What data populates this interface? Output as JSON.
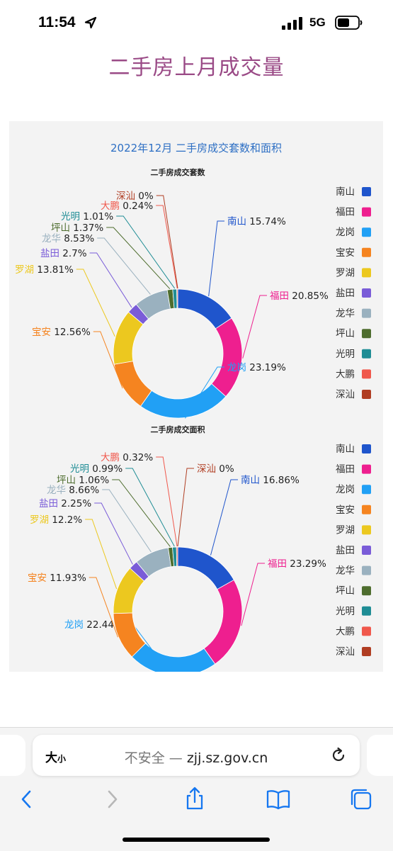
{
  "status_bar": {
    "time": "11:54",
    "network": "5G"
  },
  "page_title": "二手房上月成交量",
  "address_bar": {
    "text_size_big": "大",
    "text_size_small": "小",
    "insecure_label": "不安全 — ",
    "domain": "zjj.sz.gov.cn"
  },
  "icons": {
    "location": "location-arrow-icon",
    "signal": "signal-bars-icon",
    "battery": "battery-icon",
    "reload": "reload-icon",
    "back": "chevron-left-icon",
    "forward": "chevron-right-icon",
    "share": "share-icon",
    "bookmarks": "book-icon",
    "tabs": "tabs-icon"
  },
  "chart_data": {
    "type": "pie",
    "title": "2022年12月 二手房成交套数和面积",
    "legend_position": "right",
    "categories": [
      "南山",
      "福田",
      "龙岗",
      "宝安",
      "罗湖",
      "盐田",
      "龙华",
      "坪山",
      "光明",
      "大鹏",
      "深汕"
    ],
    "colors": [
      "#1f55cc",
      "#ee1f8f",
      "#21a0f5",
      "#f58420",
      "#ecc81f",
      "#7a5cd8",
      "#9ab1bf",
      "#4e6d2e",
      "#1f8d95",
      "#f0584c",
      "#b03d22"
    ],
    "legend": [
      "南山",
      "福田",
      "龙岗",
      "宝安",
      "罗湖",
      "盐田",
      "龙华",
      "坪山",
      "光明",
      "大鹏",
      "深汕"
    ],
    "series": [
      {
        "name": "二手房成交套数",
        "values": [
          15.74,
          20.85,
          23.19,
          12.56,
          13.81,
          2.7,
          8.53,
          1.37,
          1.01,
          0.24,
          0
        ],
        "labels": [
          "15.74%",
          "20.85%",
          "23.19%",
          "12.56%",
          "13.81%",
          "2.7%",
          "8.53%",
          "1.37%",
          "1.01%",
          "0.24%",
          "0%"
        ]
      },
      {
        "name": "二手房成交面积",
        "values": [
          16.86,
          23.29,
          22.44,
          11.93,
          12.2,
          2.25,
          8.66,
          1.06,
          0.99,
          0.32,
          0
        ],
        "labels": [
          "16.86%",
          "23.29%",
          "22.44%",
          "11.93%",
          "12.2%",
          "2.25%",
          "8.66%",
          "1.06%",
          "0.99%",
          "0.32%",
          "0%"
        ]
      }
    ]
  }
}
